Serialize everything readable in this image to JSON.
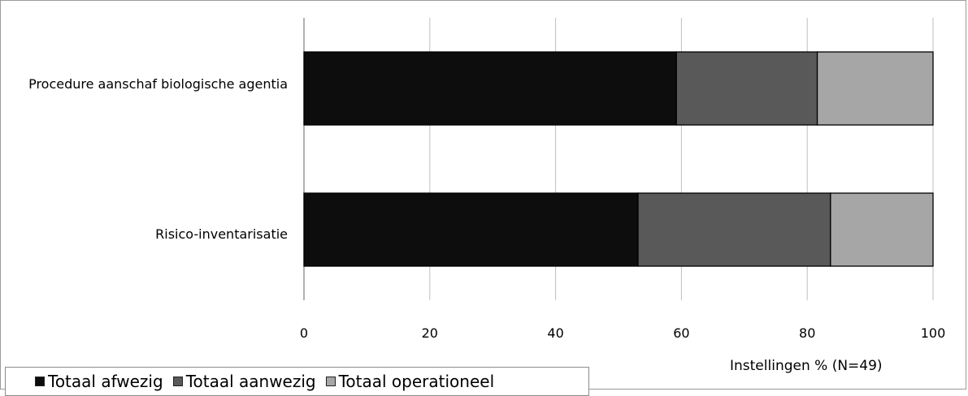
{
  "chart_data": {
    "type": "bar",
    "orientation": "horizontal",
    "stacked": true,
    "categories": [
      "Procedure aanschaf biologische agentia",
      "Risico-inventarisatie"
    ],
    "series": [
      {
        "name": "Totaal afwezig",
        "values": [
          59.2,
          53.1
        ],
        "color": "#0d0d0d"
      },
      {
        "name": "Totaal aanwezig",
        "values": [
          22.4,
          30.6
        ],
        "color": "#595959"
      },
      {
        "name": "Totaal operationeel",
        "values": [
          18.4,
          16.3
        ],
        "color": "#a6a6a6"
      }
    ],
    "xlim": [
      0,
      100
    ],
    "xticks": [
      "0",
      "20",
      "40",
      "60",
      "80",
      "100"
    ],
    "xlabel": "Instellingen % (N=49)",
    "ylabel": "",
    "title": "",
    "grid": "vertical",
    "legend_position": "bottom-left"
  }
}
